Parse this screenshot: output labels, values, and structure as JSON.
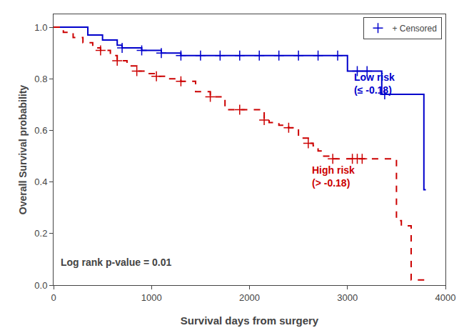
{
  "chart_data": {
    "type": "line",
    "xlabel": "Survival days from surgery",
    "ylabel": "Overall Survival probability",
    "xlim": [
      0,
      4000
    ],
    "ylim": [
      0.0,
      1.05
    ],
    "xticks": [
      0,
      1000,
      2000,
      3000,
      4000
    ],
    "yticks": [
      {
        "value": 0.0,
        "label": "0.0"
      },
      0.2,
      0.4,
      0.6,
      0.8,
      {
        "value": 1.0,
        "label": "1.0"
      }
    ],
    "grid": false,
    "legend": "upper right",
    "series": [
      {
        "type": "line",
        "color": "#0000cc",
        "line_style": "solid",
        "x": [
          0,
          200,
          350,
          500,
          650,
          700,
          900,
          1100,
          1300,
          1500,
          1700,
          1900,
          2100,
          2300,
          2500,
          2600,
          2700,
          2900,
          3000,
          3050,
          3100,
          3200,
          3350,
          3380,
          3700,
          3780,
          3800
        ],
        "values": [
          1.0,
          1.0,
          0.97,
          0.95,
          0.93,
          0.92,
          0.91,
          0.9,
          0.89,
          0.89,
          0.89,
          0.89,
          0.89,
          0.89,
          0.89,
          0.89,
          0.89,
          0.89,
          0.83,
          0.83,
          0.83,
          0.83,
          0.74,
          0.74,
          0.74,
          0.37,
          0.37
        ]
      },
      {
        "type": "line",
        "color": "#cc0000",
        "line_style": "dashed",
        "x": [
          0,
          100,
          200,
          300,
          400,
          480,
          580,
          650,
          750,
          850,
          950,
          1050,
          1150,
          1300,
          1450,
          1600,
          1750,
          1900,
          2050,
          2150,
          2200,
          2300,
          2400,
          2500,
          2600,
          2650,
          2700,
          2750,
          2850,
          2950,
          3050,
          3100,
          3150,
          3500,
          3550,
          3650,
          3700,
          3800
        ],
        "values": [
          1.0,
          0.98,
          0.96,
          0.94,
          0.92,
          0.91,
          0.89,
          0.87,
          0.85,
          0.83,
          0.82,
          0.81,
          0.8,
          0.79,
          0.75,
          0.73,
          0.68,
          0.68,
          0.68,
          0.64,
          0.63,
          0.62,
          0.61,
          0.57,
          0.55,
          0.54,
          0.52,
          0.5,
          0.49,
          0.49,
          0.49,
          0.49,
          0.49,
          0.25,
          0.23,
          0.02,
          0.02,
          0.02
        ]
      },
      {
        "name": "+ Censored",
        "type": "scatter",
        "marker": "+",
        "x": [
          700,
          900,
          1100,
          1300,
          1500,
          1700,
          1900,
          2100,
          2300,
          2500,
          2700,
          2900,
          3100,
          3200,
          3380,
          480,
          650,
          850,
          1050,
          1300,
          1600,
          1900,
          2150,
          2400,
          2600,
          2850,
          3050,
          3100,
          3150
        ],
        "values": [
          0.92,
          0.91,
          0.9,
          0.89,
          0.89,
          0.89,
          0.89,
          0.89,
          0.89,
          0.89,
          0.89,
          0.89,
          0.83,
          0.83,
          0.74,
          0.91,
          0.87,
          0.83,
          0.81,
          0.79,
          0.73,
          0.68,
          0.64,
          0.61,
          0.55,
          0.49,
          0.49,
          0.49,
          0.49
        ],
        "colors": [
          "#0000cc",
          "#0000cc",
          "#0000cc",
          "#0000cc",
          "#0000cc",
          "#0000cc",
          "#0000cc",
          "#0000cc",
          "#0000cc",
          "#0000cc",
          "#0000cc",
          "#0000cc",
          "#0000cc",
          "#0000cc",
          "#0000cc",
          "#cc0000",
          "#cc0000",
          "#cc0000",
          "#cc0000",
          "#cc0000",
          "#cc0000",
          "#cc0000",
          "#cc0000",
          "#cc0000",
          "#cc0000",
          "#cc0000",
          "#cc0000",
          "#cc0000",
          "#cc0000"
        ]
      }
    ],
    "annotations": [
      {
        "text": "Log rank p-value = 0.01",
        "x": 60,
        "y": 0.09
      },
      {
        "text": "Low risk\n(≤ -0.18)",
        "x": 3050,
        "y": 0.78,
        "color": "#0000cc"
      },
      {
        "text": "High risk\n(> -0.18)",
        "x": 2620,
        "y": 0.42,
        "color": "#cc0000"
      }
    ]
  }
}
